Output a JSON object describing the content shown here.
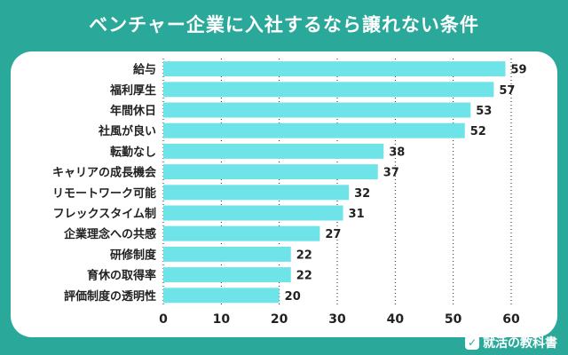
{
  "title": "ベンチャー企業に入社するなら譲れない条件",
  "brand": {
    "name": "就活の教科書",
    "icon": "chart-badge-icon"
  },
  "colors": {
    "background": "#2aa89a",
    "bar": "#6ee3e8",
    "grid": "#222222"
  },
  "chart_data": {
    "type": "bar",
    "orientation": "horizontal",
    "categories": [
      "給与",
      "福利厚生",
      "年間休日",
      "社風が良い",
      "転勤なし",
      "キャリアの成長機会",
      "リモートワーク可能",
      "フレックスタイム制",
      "企業理念への共感",
      "研修制度",
      "育休の取得率",
      "評価制度の透明性"
    ],
    "values": [
      59,
      57,
      53,
      52,
      38,
      37,
      32,
      31,
      27,
      22,
      22,
      20
    ],
    "xticks": [
      0,
      10,
      20,
      30,
      40,
      50,
      60
    ],
    "xlim": [
      0,
      60
    ],
    "grid": true,
    "data_labels": true
  }
}
